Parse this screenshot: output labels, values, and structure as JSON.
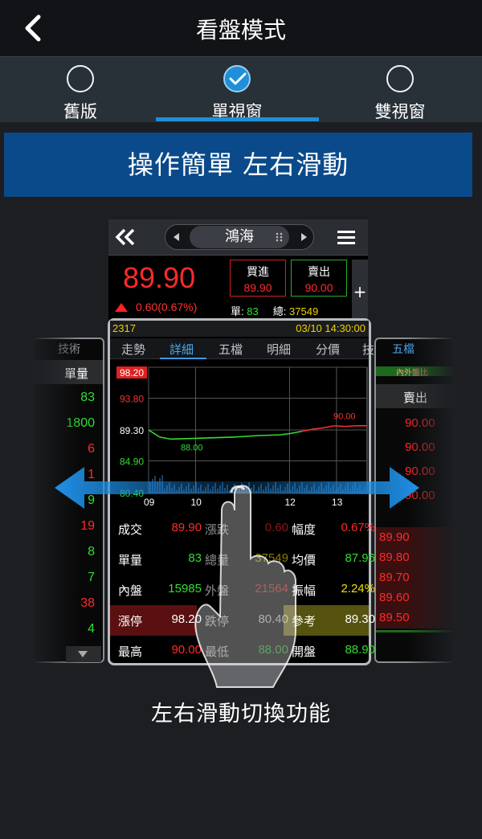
{
  "header": {
    "title": "看盤模式"
  },
  "modes": [
    {
      "label": "舊版",
      "checked": false
    },
    {
      "label": "單視窗",
      "checked": true
    },
    {
      "label": "雙視窗",
      "checked": false
    }
  ],
  "banner": {
    "text": "操作簡單 左右滑動"
  },
  "quote": {
    "stock_name": "鴻海",
    "price": "89.90",
    "change": "0.60(0.67%)",
    "buy_label": "買進",
    "buy_price": "89.90",
    "sell_label": "賣出",
    "sell_price": "90.00",
    "plus": "+",
    "volume_label": "單:",
    "volume": "83",
    "total_label": "總:",
    "total": "37549"
  },
  "panel": {
    "code": "2317",
    "datetime": "03/10 14:30:00",
    "tabs": [
      "走勢",
      "詳細",
      "五檔",
      "明細",
      "分價",
      "技"
    ],
    "active_tab": "詳細"
  },
  "chart_data": {
    "type": "line",
    "y_tick_labels": [
      "98.20",
      "93.80",
      "89.30",
      "84.90",
      "80.40"
    ],
    "x_tick_labels": [
      "09",
      "10",
      "12",
      "13"
    ],
    "ylim": [
      80.4,
      98.2
    ],
    "annotations": [
      {
        "text": "88.00",
        "meaning": "low"
      },
      {
        "text": "90.00",
        "meaning": "high"
      }
    ],
    "series": [
      {
        "x": [
          0,
          0.05,
          0.1,
          0.2,
          0.3,
          0.4,
          0.5,
          0.6,
          0.65,
          0.7,
          0.75,
          0.8,
          0.85,
          0.9,
          0.95,
          1.0
        ],
        "values": [
          89.3,
          88.3,
          88.0,
          88.1,
          88.2,
          88.3,
          88.5,
          88.6,
          88.8,
          89.1,
          89.4,
          89.6,
          89.9,
          89.8,
          89.9,
          89.9
        ]
      }
    ]
  },
  "stats": {
    "rows": [
      [
        {
          "l": "成交",
          "v": "89.90",
          "c": "red"
        },
        {
          "l": "漲跌",
          "v": "0.60",
          "c": "red"
        },
        {
          "l": "幅度",
          "v": "0.67%",
          "c": "red"
        }
      ],
      [
        {
          "l": "單量",
          "v": "83",
          "c": "grn"
        },
        {
          "l": "總量",
          "v": "37549",
          "c": "yel"
        },
        {
          "l": "均價",
          "v": "87.96",
          "c": "grn"
        }
      ],
      [
        {
          "l": "內盤",
          "v": "15985",
          "c": "grn"
        },
        {
          "l": "外盤",
          "v": "21564",
          "c": "red"
        },
        {
          "l": "振幅",
          "v": "2.24%",
          "c": "yel"
        }
      ],
      [
        {
          "l": "漲停",
          "v": "98.20",
          "c": "wht"
        },
        {
          "l": "跌停",
          "v": "80.40",
          "c": "wht"
        },
        {
          "l": "參考",
          "v": "89.30",
          "c": "wht"
        }
      ],
      [
        {
          "l": "最高",
          "v": "90.00",
          "c": "red"
        },
        {
          "l": "最低",
          "v": "88.00",
          "c": "grn"
        },
        {
          "l": "開盤",
          "v": "88.90",
          "c": "grn"
        }
      ]
    ]
  },
  "left_ghost": {
    "tab": "技術",
    "header": "單量",
    "values": [
      "83",
      "1800",
      "6",
      "1",
      "9",
      "19",
      "8",
      "7",
      "38",
      "4"
    ],
    "colors": [
      "grn",
      "grn",
      "red",
      "red",
      "grn",
      "red",
      "grn",
      "grn",
      "red",
      "grn"
    ]
  },
  "right_ghost": {
    "tab": "五檔",
    "subheader": "內外盤比",
    "header": "賣出",
    "ask_prices": [
      "90.00",
      "90.00",
      "90.00",
      "90.00"
    ],
    "bid_prices": [
      "89.90",
      "89.80",
      "89.70",
      "89.60",
      "89.50"
    ]
  },
  "caption": "左右滑動切換功能"
}
